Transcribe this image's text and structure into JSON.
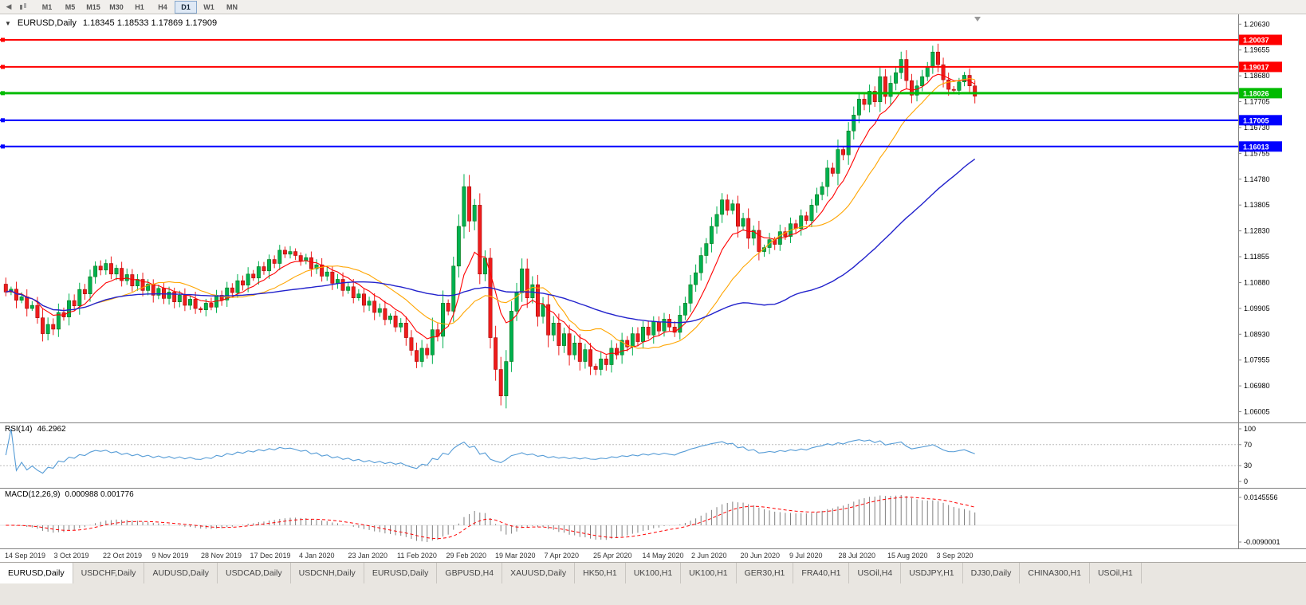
{
  "toolbar": {
    "timeframes": [
      "M1",
      "M5",
      "M15",
      "M30",
      "H1",
      "H4",
      "D1",
      "W1",
      "MN"
    ],
    "active": "D1"
  },
  "quote": {
    "symbol": "EURUSD,Daily",
    "ohlc": "1.18345 1.18533 1.17869 1.17909"
  },
  "chart_data": {
    "type": "candlestick",
    "symbol": "EURUSD",
    "timeframe": "Daily",
    "ylim": [
      1.056,
      1.21
    ],
    "price_axis": {
      "top": 1.2063,
      "step": 0.00975,
      "count": 16
    },
    "candle_up_color": "#00B050",
    "candle_down_color": "#EE1C1C",
    "ma_colors": [
      "#FF0000",
      "#FFA500",
      "#2222CC"
    ],
    "closes": [
      1.1052,
      1.1063,
      1.1021,
      1.1034,
      1.099,
      1.1002,
      1.0955,
      1.0895,
      1.093,
      1.0912,
      1.0975,
      1.0958,
      1.102,
      1.1,
      1.1062,
      1.1045,
      1.111,
      1.115,
      1.1135,
      1.116,
      1.112,
      1.1142,
      1.1095,
      1.1118,
      1.1075,
      1.11,
      1.1058,
      1.1082,
      1.104,
      1.1066,
      1.1028,
      1.1052,
      1.1015,
      1.104,
      1.1002,
      1.1025,
      1.099,
      1.0985,
      1.101,
      1.0995,
      1.104,
      1.1022,
      1.1068,
      1.105,
      1.1095,
      1.1078,
      1.112,
      1.1105,
      1.1148,
      1.1132,
      1.1175,
      1.116,
      1.121,
      1.1195,
      1.1205,
      1.119,
      1.117,
      1.1182,
      1.114,
      1.1155,
      1.1112,
      1.1128,
      1.1085,
      1.11,
      1.1058,
      1.1072,
      1.103,
      1.1045,
      1.1002,
      1.1018,
      1.0975,
      1.099,
      1.0948,
      1.0962,
      1.092,
      1.0935,
      1.088,
      1.0832,
      1.079,
      1.084,
      1.0815,
      1.091,
      1.0885,
      1.101,
      1.098,
      1.115,
      1.13,
      1.145,
      1.132,
      1.138,
      1.112,
      1.118,
      1.088,
      1.076,
      1.066,
      1.079,
      1.098,
      1.105,
      1.114,
      1.103,
      1.108,
      1.096,
      1.1005,
      1.089,
      1.0935,
      1.085,
      1.0895,
      1.0815,
      1.086,
      1.079,
      1.0835,
      1.0772,
      1.076,
      1.08,
      1.0778,
      1.084,
      1.0815,
      1.087,
      1.0845,
      1.0895,
      1.0865,
      1.092,
      1.089,
      1.094,
      1.0905,
      1.095,
      1.092,
      1.09,
      1.0965,
      1.101,
      1.108,
      1.1125,
      1.119,
      1.1235,
      1.13,
      1.1345,
      1.14,
      1.136,
      1.1385,
      1.13,
      1.133,
      1.1255,
      1.1285,
      1.1205,
      1.122,
      1.125,
      1.1232,
      1.128,
      1.1262,
      1.131,
      1.1292,
      1.134,
      1.1322,
      1.138,
      1.142,
      1.145,
      1.152,
      1.15,
      1.159,
      1.157,
      1.166,
      1.172,
      1.178,
      1.176,
      1.181,
      1.177,
      1.1865,
      1.179,
      1.184,
      1.188,
      1.193,
      1.185,
      1.1795,
      1.183,
      1.1865,
      1.19,
      1.1958,
      1.191,
      1.1853,
      1.1817,
      1.1813,
      1.1845,
      1.187,
      1.183,
      1.1791
    ],
    "horizontal_lines": [
      {
        "value": 1.20037,
        "label": "1.20037",
        "color": "#FF0000",
        "width": 2
      },
      {
        "value": 1.19017,
        "label": "1.19017",
        "color": "#FF0000",
        "width": 2
      },
      {
        "value": 1.18026,
        "label": "1.18026",
        "color": "#00BB00",
        "width": 3
      },
      {
        "value": 1.17005,
        "label": "1.17005",
        "color": "#0000FF",
        "width": 2
      },
      {
        "value": 1.16013,
        "label": "1.16013",
        "color": "#0000FF",
        "width": 2
      }
    ],
    "x_labels": [
      "14 Sep 2019",
      "3 Oct 2019",
      "22 Oct 2019",
      "9 Nov 2019",
      "28 Nov 2019",
      "17 Dec 2019",
      "4 Jan 2020",
      "23 Jan 2020",
      "11 Feb 2020",
      "29 Feb 2020",
      "19 Mar 2020",
      "7 Apr 2020",
      "25 Apr 2020",
      "14 May 2020",
      "2 Jun 2020",
      "20 Jun 2020",
      "9 Jul 2020",
      "28 Jul 2020",
      "15 Aug 2020",
      "3 Sep 2020"
    ],
    "rsi": {
      "title": "RSI(14)",
      "value": "46.2962",
      "period": 14,
      "levels": [
        100,
        70,
        30,
        0
      ],
      "color": "#569CD6"
    },
    "macd": {
      "title": "MACD(12,26,9)",
      "values": "0.000988 0.001776",
      "fast": 12,
      "slow": 26,
      "signal": 9,
      "axis_top": "0.0145556",
      "axis_bottom": "-0.0090001",
      "hist_color": "#808080",
      "signal_color": "#FF0000"
    }
  },
  "tabs": {
    "active_index": 0,
    "items": [
      "EURUSD,Daily",
      "USDCHF,Daily",
      "AUDUSD,Daily",
      "USDCAD,Daily",
      "USDCNH,Daily",
      "EURUSD,Daily",
      "GBPUSD,H4",
      "XAUUSD,Daily",
      "HK50,H1",
      "UK100,H1",
      "UK100,H1",
      "GER30,H1",
      "FRA40,H1",
      "USOil,H4",
      "USDJPY,H1",
      "DJ30,Daily",
      "CHINA300,H1",
      "USOil,H1"
    ]
  }
}
